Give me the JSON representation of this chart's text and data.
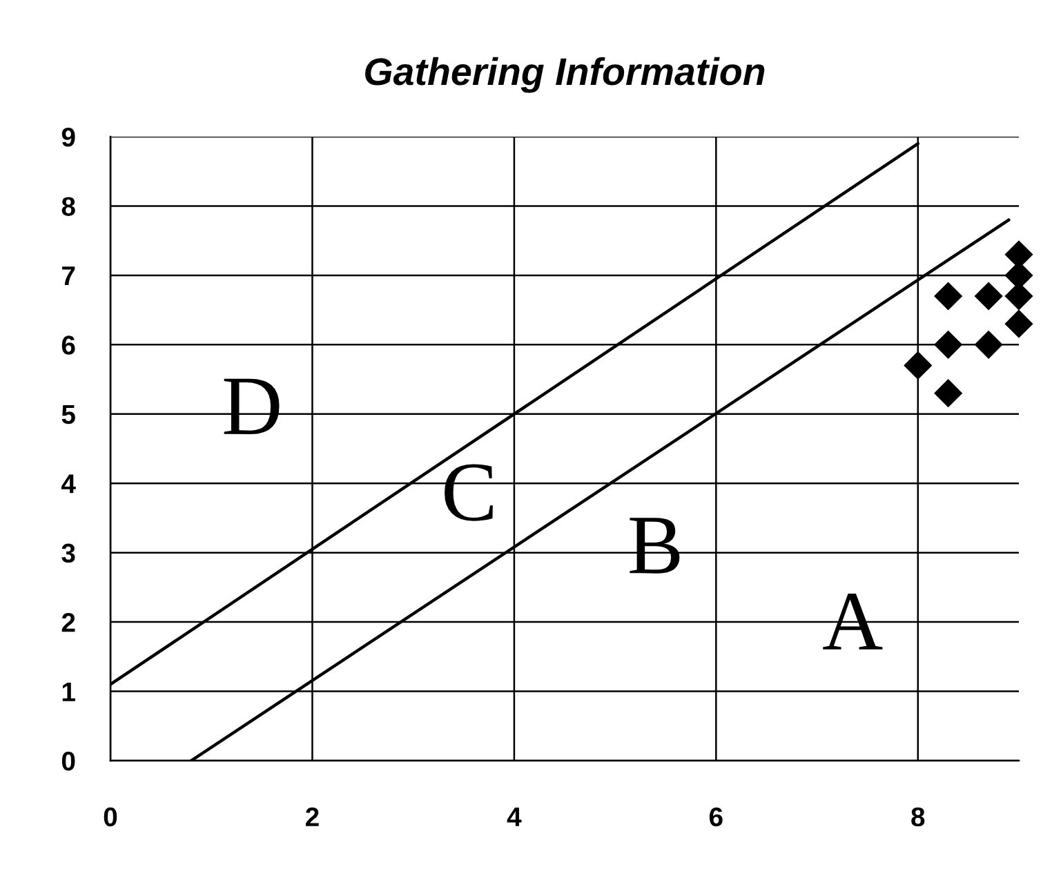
{
  "chart_data": {
    "type": "scatter",
    "title": "Gathering Information",
    "series": [
      {
        "type": "line",
        "color": "#000000",
        "x": [
          0,
          8
        ],
        "values": [
          1.1,
          8.9
        ]
      },
      {
        "type": "line",
        "color": "#000000",
        "x": [
          0.8,
          8.9
        ],
        "values": [
          0,
          7.8
        ]
      },
      {
        "color": "#000000",
        "marker": "diamond",
        "x": [
          8,
          8.3,
          8.3,
          8.3,
          8.7,
          8.7,
          9,
          9,
          9,
          9
        ],
        "values": [
          5.7,
          5.3,
          6,
          6.7,
          6,
          6.7,
          6.3,
          6.7,
          7,
          7.3
        ]
      }
    ],
    "annotations": [
      "D",
      "C",
      "B",
      "A"
    ],
    "xlim": [
      0,
      9
    ],
    "xticks": [
      0,
      2,
      4,
      6,
      8
    ],
    "ylim": [
      0,
      9
    ],
    "yticks": [
      0,
      1,
      2,
      3,
      4,
      5,
      6,
      7,
      8,
      9
    ],
    "grid": true
  }
}
